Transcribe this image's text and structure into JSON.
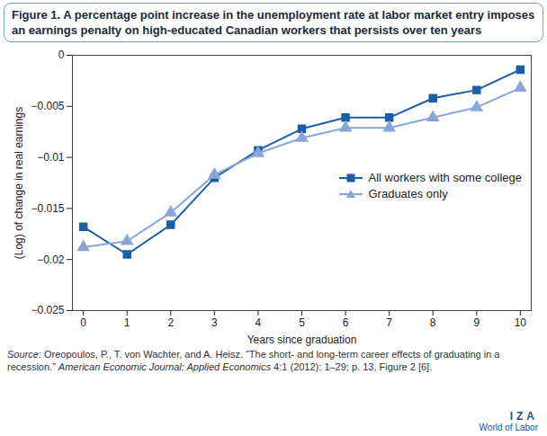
{
  "chart_data": {
    "type": "line",
    "title": "Figure 1. A percentage point increase in the unemployment rate at labor market entry imposes an earnings penalty on high-educated Canadian workers that persists over ten years",
    "x_label": "Years since graduation",
    "y_label": "(Log) of change in real earnings",
    "x": [
      0,
      1,
      2,
      3,
      4,
      5,
      6,
      7,
      8,
      9,
      10
    ],
    "series": [
      {
        "name": "All workers with some college",
        "color": "#1a5ea8",
        "marker": "square",
        "values": [
          -0.0168,
          -0.0195,
          -0.0166,
          -0.012,
          -0.0093,
          -0.0072,
          -0.0061,
          -0.0061,
          -0.0042,
          -0.0034,
          -0.0014
        ]
      },
      {
        "name": "Graduates only",
        "color": "#8aa6d8",
        "marker": "triangle",
        "values": [
          -0.0188,
          -0.0182,
          -0.0154,
          -0.0117,
          -0.0096,
          -0.0081,
          -0.0071,
          -0.0071,
          -0.0061,
          -0.0051,
          -0.0032
        ]
      }
    ],
    "xlim": [
      -0.25,
      10.25
    ],
    "xticks": [
      0,
      1,
      2,
      3,
      4,
      5,
      6,
      7,
      8,
      9,
      10
    ],
    "ylim": [
      -0.025,
      0
    ],
    "yticks": [
      {
        "value": -0.025,
        "label": "−0.025"
      },
      {
        "value": -0.02,
        "label": "−0.02"
      },
      {
        "value": -0.015,
        "label": "−0.015"
      },
      {
        "value": -0.01,
        "label": "−0.01"
      },
      {
        "value": -0.005,
        "label": "−0.005"
      },
      0
    ],
    "grid": false,
    "legend": "right",
    "source": [
      "Source",
      ": Oreopoulos, P., T. von Wachter, and A. Heisz. “The short- and long-term career effects of graduating in a recession.” ",
      "American Economic Journal: Applied Economics",
      " 4:1 (2012): 1–29; p. 13, Figure 2 [6]."
    ],
    "logo": [
      "IZA",
      "World of Labor"
    ]
  }
}
